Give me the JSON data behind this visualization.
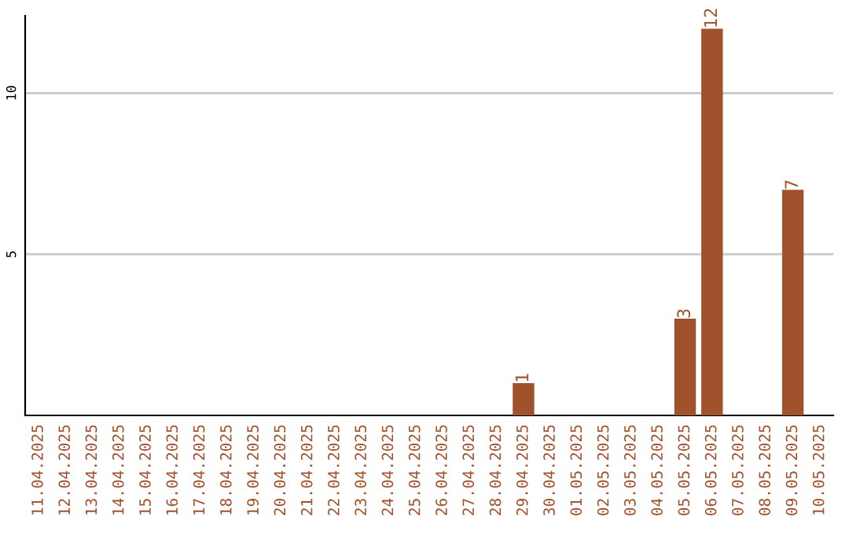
{
  "chart_data": {
    "type": "bar",
    "categories": [
      "11.04.2025",
      "12.04.2025",
      "13.04.2025",
      "14.04.2025",
      "15.04.2025",
      "16.04.2025",
      "17.04.2025",
      "18.04.2025",
      "19.04.2025",
      "20.04.2025",
      "21.04.2025",
      "22.04.2025",
      "23.04.2025",
      "24.04.2025",
      "25.04.2025",
      "26.04.2025",
      "27.04.2025",
      "28.04.2025",
      "29.04.2025",
      "30.04.2025",
      "01.05.2025",
      "02.05.2025",
      "03.05.2025",
      "04.05.2025",
      "05.05.2025",
      "06.05.2025",
      "07.05.2025",
      "08.05.2025",
      "09.05.2025",
      "10.05.2025"
    ],
    "values": [
      0,
      0,
      0,
      0,
      0,
      0,
      0,
      0,
      0,
      0,
      0,
      0,
      0,
      0,
      0,
      0,
      0,
      0,
      1,
      0,
      0,
      0,
      0,
      0,
      3,
      12,
      0,
      0,
      7,
      0
    ],
    "value_labels": [
      null,
      null,
      null,
      null,
      null,
      null,
      null,
      null,
      null,
      null,
      null,
      null,
      null,
      null,
      null,
      null,
      null,
      null,
      "1",
      null,
      null,
      null,
      null,
      null,
      "3",
      "12",
      null,
      null,
      "7",
      null
    ],
    "color": "#a0522d",
    "ylim": [
      0,
      12.4
    ],
    "yticks": [
      5,
      10
    ],
    "grid": "y"
  }
}
